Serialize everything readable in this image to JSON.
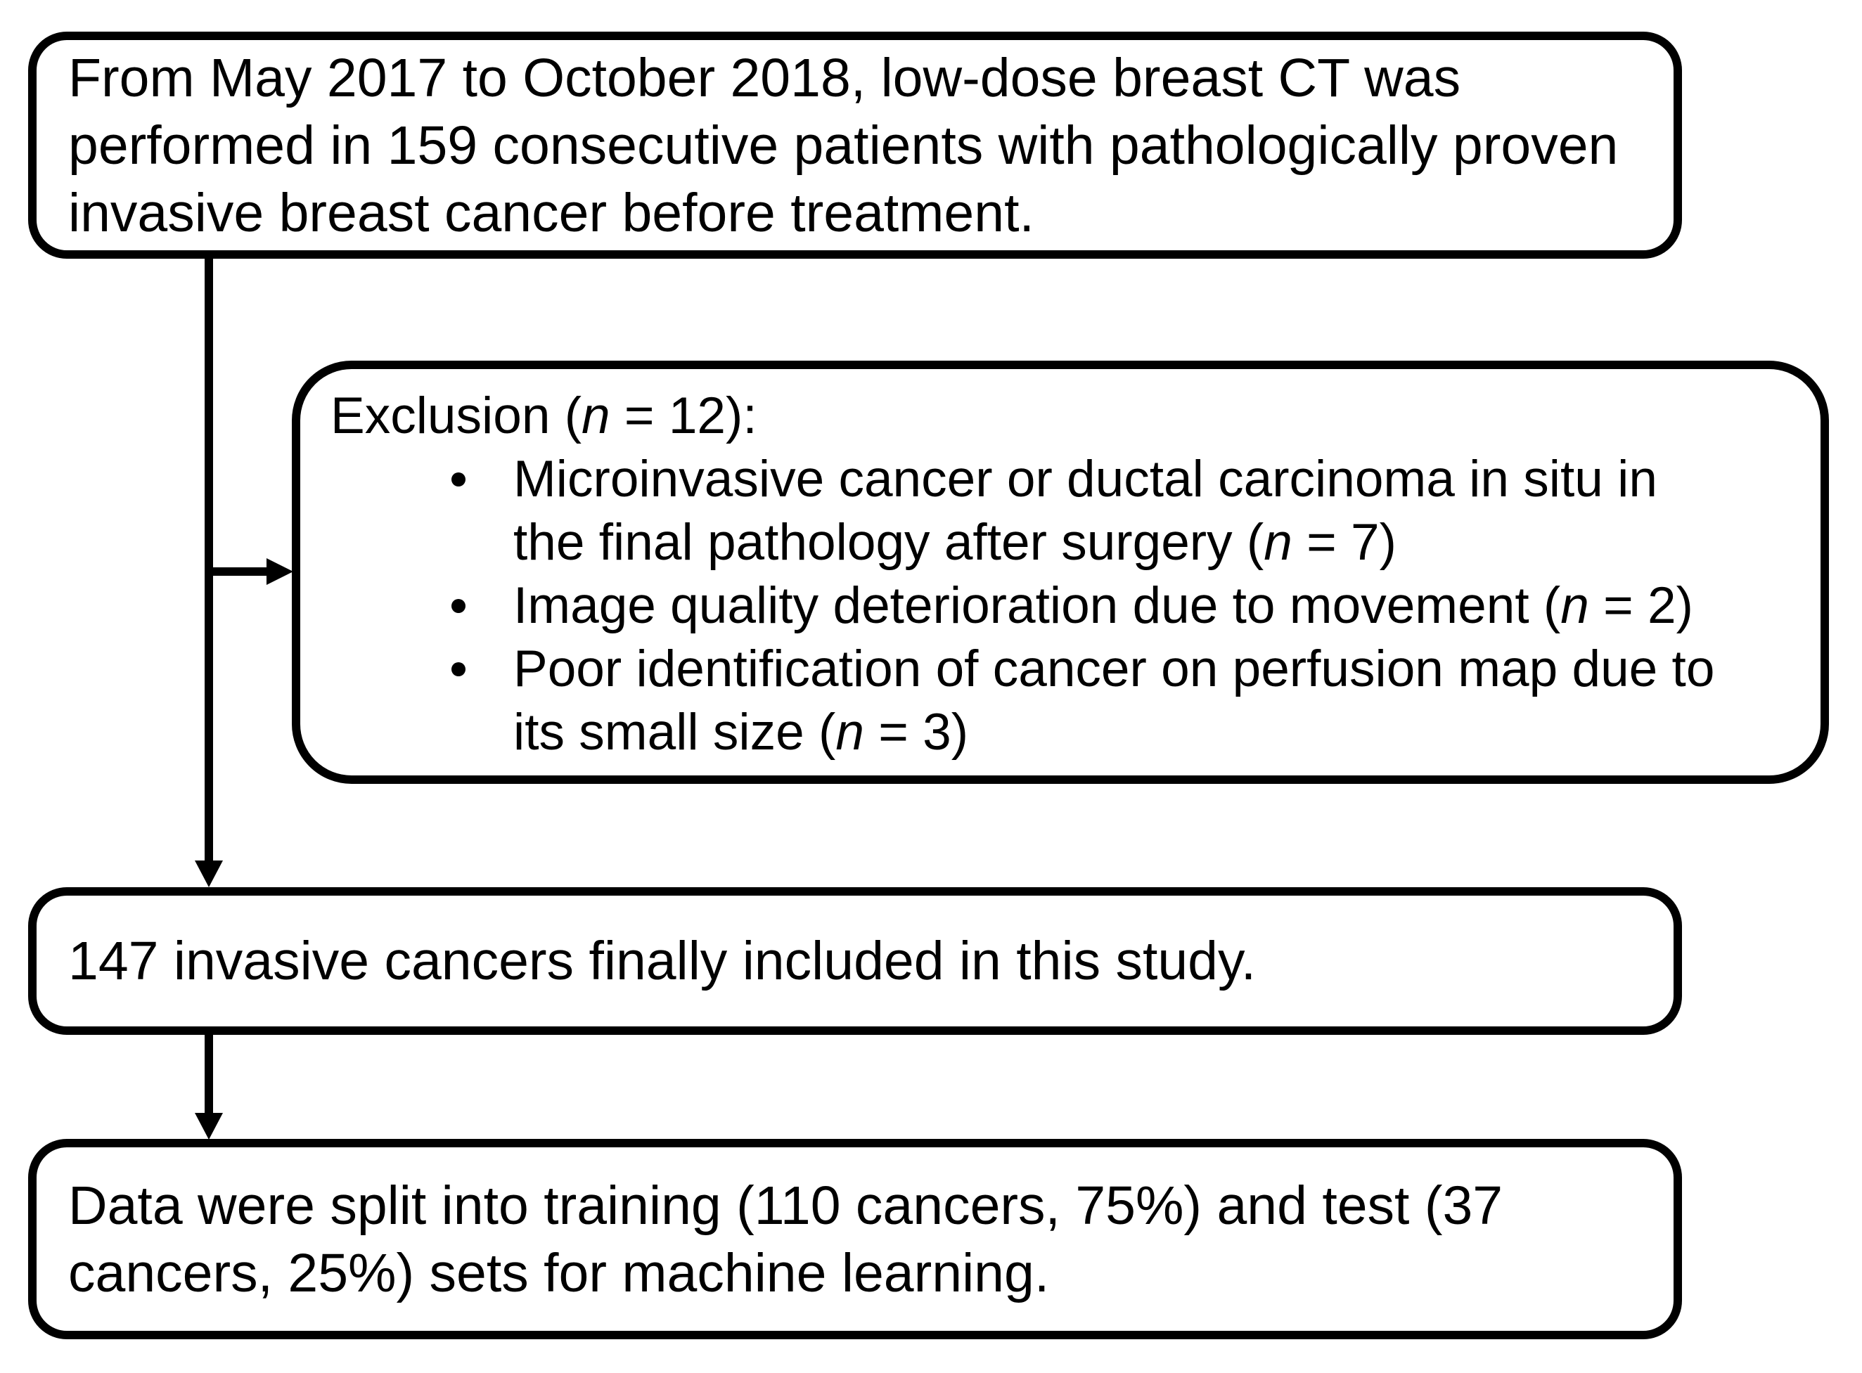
{
  "figure": {
    "type": "flowchart",
    "background_color": "#ffffff",
    "stroke_color": "#000000"
  },
  "boxes": {
    "recruitment": {
      "lines": [
        "From May 2017 to October 2018, low-dose breast CT was",
        "performed in 159 consecutive patients with pathologically proven",
        "invasive breast cancer before treatment."
      ]
    },
    "exclusion": {
      "title": "Exclusion ({n} = 12):",
      "bullets": [
        [
          "Microinvasive cancer or ductal carcinoma in situ in",
          "the final pathology after surgery ({n} = 7)"
        ],
        [
          "Image quality deterioration due to movement ({n} = 2)"
        ],
        [
          "Poor identification of cancer on perfusion map due to",
          "its small size ({n} = 3)"
        ]
      ]
    },
    "included": {
      "lines": [
        "147 invasive cancers finally included in this study."
      ]
    },
    "split": {
      "lines": [
        "Data were split into training (110 cancers, 75%) and test (37",
        "cancers, 25%) sets for machine learning."
      ]
    }
  }
}
